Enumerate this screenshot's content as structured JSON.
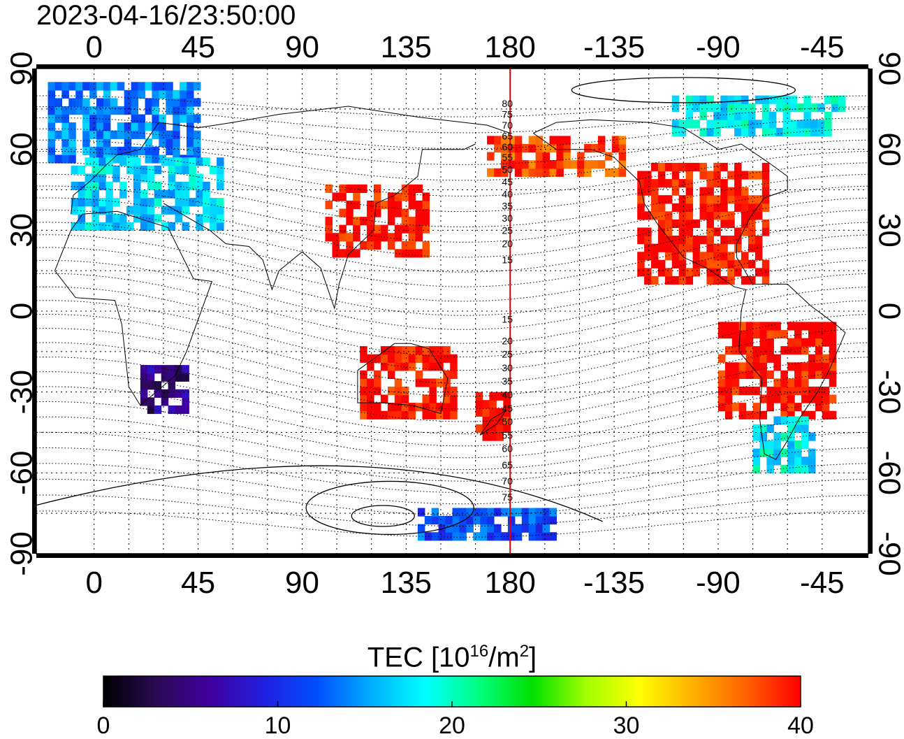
{
  "title": "2023-04-16/23:50:00",
  "map": {
    "x_ticks": [
      "0",
      "45",
      "90",
      "135",
      "180",
      "-135",
      "-90",
      "-45"
    ],
    "y_ticks_left": [
      "90",
      "60",
      "30",
      "0",
      "-30",
      "-60",
      "-90"
    ],
    "y_ticks_right": [
      "90",
      "60",
      "30",
      "0",
      "-30",
      "-60",
      "-90"
    ],
    "contour_labels": [
      "80",
      "75",
      "70",
      "65",
      "60",
      "55",
      "50",
      "45",
      "40",
      "35",
      "30",
      "25",
      "20",
      "15",
      "15",
      "20",
      "25",
      "30",
      "35",
      "40",
      "45",
      "50",
      "55",
      "60",
      "65",
      "70",
      "75"
    ],
    "meridian_color": "#e00000"
  },
  "colorbar": {
    "title_prefix": "TEC  [10",
    "title_sup1": "16",
    "title_mid": "/m",
    "title_sup2": "2",
    "title_suffix": "]",
    "tick_labels": [
      "0",
      "10",
      "20",
      "30",
      "40"
    ],
    "stops": [
      "#000000",
      "#2a0a55",
      "#4000a0",
      "#2020e0",
      "#0050ff",
      "#00b0ff",
      "#00ffff",
      "#00ff80",
      "#00e000",
      "#a0ff00",
      "#ffff00",
      "#ffb000",
      "#ff6000",
      "#ff0000"
    ]
  },
  "chart_data": {
    "type": "heatmap",
    "title": "2023-04-16/23:50:00",
    "xlabel": "",
    "ylabel": "",
    "x_range": [
      -25,
      335
    ],
    "y_range": [
      -90,
      90
    ],
    "colorbar_range": [
      0,
      40
    ],
    "colorbar_label": "TEC [10^16/m^2]",
    "regions": [
      {
        "lon": [
          -20,
          45
        ],
        "lat": [
          55,
          85
        ],
        "tec": 14
      },
      {
        "lon": [
          -10,
          55
        ],
        "lat": [
          30,
          55
        ],
        "tec": 17
      },
      {
        "lon": [
          20,
          40
        ],
        "lat": [
          -38,
          -20
        ],
        "tec": 5
      },
      {
        "lon": [
          100,
          145
        ],
        "lat": [
          20,
          45
        ],
        "tec": 40
      },
      {
        "lon": [
          115,
          155
        ],
        "lat": [
          -40,
          -15
        ],
        "tec": 40
      },
      {
        "lon": [
          165,
          180
        ],
        "lat": [
          -48,
          -32
        ],
        "tec": 40
      },
      {
        "lon": [
          170,
          230
        ],
        "lat": [
          50,
          65
        ],
        "tec": 38
      },
      {
        "lon": [
          235,
          290
        ],
        "lat": [
          10,
          55
        ],
        "tec": 40
      },
      {
        "lon": [
          270,
          320
        ],
        "lat": [
          -40,
          -5
        ],
        "tec": 40
      },
      {
        "lon": [
          285,
          310
        ],
        "lat": [
          -60,
          -40
        ],
        "tec": 18
      },
      {
        "lon": [
          250,
          325
        ],
        "lat": [
          65,
          80
        ],
        "tec": 18
      },
      {
        "lon": [
          140,
          200
        ],
        "lat": [
          -85,
          -75
        ],
        "tec": 12
      }
    ]
  }
}
